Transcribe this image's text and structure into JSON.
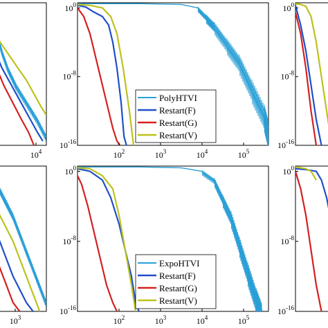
{
  "chart_data": [
    {
      "type": "line",
      "panel": "top-left (cropped)",
      "xscale": "log",
      "yscale": "log",
      "x_tick_labels": [
        "10^4"
      ],
      "y_tick_labels": [],
      "series": [
        {
          "color": "#2a9fd6",
          "x": [
            0.35,
            1.2,
            2.5,
            4.2,
            6.5,
            9.5,
            12.5,
            15
          ],
          "y": [
            -1,
            -3,
            -5,
            -7,
            -9,
            -11,
            -13,
            -15
          ]
        },
        {
          "color": "#1f4fc8",
          "x": [
            0.1,
            1.0,
            2.5,
            4.5,
            6.5,
            8.5,
            10.5,
            12.5,
            14.0
          ],
          "y": [
            -4,
            -5.5,
            -7,
            -8.5,
            -10,
            -11.5,
            -13,
            -14.5,
            -15.5
          ]
        },
        {
          "color": "#d42020",
          "x": [
            0.1,
            1.0,
            3.0,
            5.5,
            8.0,
            10.0,
            11.5
          ],
          "y": [
            -5,
            -7,
            -9,
            -11,
            -13,
            -14.5,
            -16
          ]
        },
        {
          "color": "#bcc21c",
          "x": [
            0.1,
            2.0,
            4.5,
            7.0,
            9.5,
            11.5,
            13.5,
            15.0
          ],
          "y": [
            -2.5,
            -4,
            -5.5,
            -7,
            -8.5,
            -10,
            -11.5,
            -12.5
          ]
        }
      ]
    },
    {
      "type": "line",
      "panel": "top-middle",
      "xscale": "log",
      "yscale": "log",
      "xlim_exp": [
        1,
        5.6
      ],
      "ylim_exp": [
        -16,
        0.6
      ],
      "x_tick_labels": [
        "10^2",
        "10^3",
        "10^4",
        "10^5"
      ],
      "y_tick_labels": [
        "10^0",
        "10^-8",
        "10^-16"
      ],
      "legend": [
        "PolyHTVI",
        "Restart(F)",
        "Restart(G)",
        "Restart(V)"
      ],
      "legend_position": "lower-center",
      "series": [
        {
          "name": "PolyHTVI",
          "color": "#2a9fd6",
          "x": [
            1.0,
            2.5,
            3.5,
            3.9,
            4.1,
            4.3,
            4.6,
            4.9,
            5.2,
            5.5,
            5.6
          ],
          "y": [
            0.5,
            0.5,
            0.4,
            0,
            -1,
            -2,
            -4,
            -6,
            -9,
            -12,
            -14
          ]
        },
        {
          "name": "Restart(F)",
          "color": "#1f4fc8",
          "x": [
            1.0,
            1.2,
            1.4,
            1.6,
            1.75,
            1.85,
            1.95,
            2.05,
            2.12,
            2.18
          ],
          "y": [
            0.3,
            0.1,
            -0.5,
            -1,
            -2,
            -4,
            -7,
            -11,
            -15,
            -16
          ]
        },
        {
          "name": "Restart(G)",
          "color": "#d42020",
          "x": [
            1.0,
            1.15,
            1.3,
            1.45,
            1.6,
            1.75,
            1.85,
            1.95,
            2.02
          ],
          "y": [
            0,
            -1,
            -3,
            -6,
            -9,
            -12,
            -14,
            -15.5,
            -16
          ]
        },
        {
          "name": "Restart(V)",
          "color": "#bcc21c",
          "x": [
            1.0,
            1.3,
            1.6,
            1.8,
            1.95,
            2.1,
            2.25,
            2.35
          ],
          "y": [
            0.4,
            0.3,
            0,
            -1,
            -3,
            -7,
            -12,
            -16
          ]
        }
      ]
    },
    {
      "type": "line",
      "panel": "top-right (cropped)",
      "xscale": "log",
      "yscale": "log",
      "y_tick_labels": [
        "10^0",
        "10^-8",
        "10^-16"
      ],
      "series": [
        {
          "color": "#1f4fc8",
          "x": [
            0,
            1,
            2,
            3,
            4,
            5
          ],
          "y": [
            0.3,
            -2,
            -5,
            -9,
            -13,
            -16
          ]
        },
        {
          "color": "#d42020",
          "x": [
            0,
            1,
            2,
            3,
            4
          ],
          "y": [
            -0.5,
            -3,
            -7,
            -12,
            -16
          ]
        },
        {
          "color": "#bcc21c",
          "x": [
            0,
            1,
            2,
            3,
            4,
            5,
            6,
            7
          ],
          "y": [
            0.5,
            0.4,
            0.2,
            -1,
            -4,
            -8,
            -12,
            -16
          ]
        }
      ]
    },
    {
      "type": "line",
      "panel": "bottom-left (cropped)",
      "xscale": "log",
      "yscale": "log",
      "x_tick_labels": [
        "10^3"
      ],
      "y_tick_labels": [],
      "series": [
        {
          "color": "#2a9fd6",
          "x": [
            0,
            2,
            4,
            6,
            8,
            10,
            12,
            14,
            16
          ],
          "y": [
            -1,
            -2,
            -3.5,
            -5,
            -7,
            -9,
            -11,
            -13,
            -15
          ]
        },
        {
          "color": "#1f4fc8",
          "x": [
            0,
            2,
            4,
            6,
            8,
            10,
            12
          ],
          "y": [
            -6,
            -8,
            -10,
            -12,
            -13.5,
            -15,
            -16
          ]
        },
        {
          "color": "#d42020",
          "x": [
            0,
            2,
            4,
            6,
            8
          ],
          "y": [
            -9,
            -11,
            -13,
            -15,
            -16
          ]
        },
        {
          "color": "#bcc21c",
          "x": [
            0,
            2,
            4,
            6,
            8,
            10,
            12,
            14
          ],
          "y": [
            -4,
            -5,
            -6.5,
            -8,
            -10,
            -12,
            -14,
            -16
          ]
        }
      ]
    },
    {
      "type": "line",
      "panel": "bottom-middle",
      "xscale": "log",
      "yscale": "log",
      "xlim_exp": [
        1,
        5.6
      ],
      "ylim_exp": [
        -16,
        0.6
      ],
      "x_tick_labels": [
        "10^2",
        "10^3",
        "10^4",
        "10^5"
      ],
      "y_tick_labels": [
        "10^0",
        "10^-8",
        "10^-16"
      ],
      "legend": [
        "ExpoHTVI",
        "Restart(F)",
        "Restart(G)",
        "Restart(V)"
      ],
      "legend_position": "lower-center",
      "series": [
        {
          "name": "ExpoHTVI",
          "color": "#2a9fd6",
          "x": [
            1.0,
            2.5,
            3.5,
            4.0,
            4.3,
            4.5,
            4.7,
            4.9,
            5.1,
            5.3,
            5.45
          ],
          "y": [
            0.5,
            0.5,
            0.4,
            0,
            -1,
            -3,
            -5,
            -8,
            -11,
            -14,
            -16
          ]
        },
        {
          "name": "Restart(F)",
          "color": "#1f4fc8",
          "x": [
            1.0,
            1.3,
            1.6,
            1.8,
            2.0,
            2.15,
            2.3,
            2.4,
            2.48
          ],
          "y": [
            0.3,
            0,
            -1,
            -3,
            -6,
            -9,
            -12,
            -15,
            -16
          ]
        },
        {
          "name": "Restart(G)",
          "color": "#d42020",
          "x": [
            1.0,
            1.1,
            1.25,
            1.4,
            1.55,
            1.7,
            1.85,
            1.95
          ],
          "y": [
            -0.5,
            -1.5,
            -4,
            -7,
            -10,
            -13,
            -15,
            -16
          ]
        },
        {
          "name": "Restart(V)",
          "color": "#bcc21c",
          "x": [
            1.0,
            1.3,
            1.6,
            1.85,
            2.0,
            2.15,
            2.3,
            2.4
          ],
          "y": [
            0.4,
            0.3,
            -0.5,
            -2,
            -5,
            -9,
            -13,
            -16
          ]
        }
      ]
    },
    {
      "type": "line",
      "panel": "bottom-right (cropped)",
      "xscale": "log",
      "yscale": "log",
      "y_tick_labels": [
        "10^0",
        "10^-8",
        "10^-16"
      ],
      "series": [
        {
          "color": "#1f4fc8",
          "x": [
            0,
            2,
            4,
            5,
            6,
            7,
            8
          ],
          "y": [
            0.3,
            0.2,
            0,
            -1,
            -3,
            -6,
            -9
          ]
        },
        {
          "color": "#d42020",
          "x": [
            0,
            1,
            2,
            3,
            4,
            5
          ],
          "y": [
            0,
            -2,
            -5,
            -9,
            -13,
            -16
          ]
        },
        {
          "color": "#bcc21c",
          "x": [
            0,
            1,
            2,
            3,
            4
          ],
          "y": [
            0.5,
            0.4,
            0.3,
            0,
            -1
          ]
        }
      ]
    }
  ]
}
